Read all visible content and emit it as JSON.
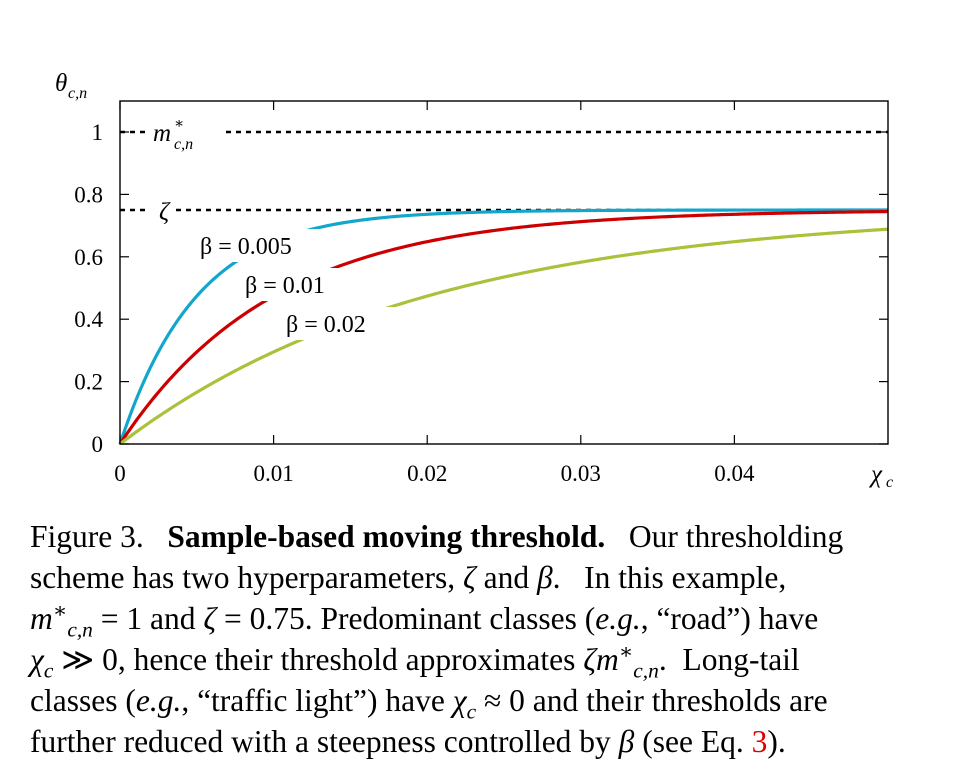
{
  "chart_data": {
    "type": "line",
    "xlabel": "χc",
    "ylabel": "θc,n",
    "xlim": [
      0,
      0.05
    ],
    "ylim": [
      0,
      1.05
    ],
    "xticks": [
      0,
      0.01,
      0.02,
      0.03,
      0.04
    ],
    "xtick_labels": [
      "0",
      "0.01",
      "0.02",
      "0.03",
      "0.04"
    ],
    "yticks": [
      0,
      0.2,
      0.4,
      0.6,
      0.8,
      1
    ],
    "ytick_labels": [
      "0",
      "0.2",
      "0.4",
      "0.6",
      "0.8",
      "1"
    ],
    "colors": {
      "beta_0005": "#13a6cd",
      "beta_001": "#cc0000",
      "beta_002": "#a8c23a",
      "reference": "#000000"
    },
    "reference_lines": [
      {
        "label": "m*c,n",
        "y": 1
      },
      {
        "label": "ζ",
        "y": 0.75
      }
    ],
    "series": [
      {
        "name": "β = 0.005",
        "beta": 0.005,
        "x": [
          0,
          0.005,
          0.01,
          0.015,
          0.02,
          0.025,
          0.03,
          0.035,
          0.04,
          0.045,
          0.05
        ],
        "y": [
          0,
          0.474,
          0.649,
          0.713,
          0.737,
          0.745,
          0.748,
          0.749,
          0.75,
          0.75,
          0.75
        ]
      },
      {
        "name": "β = 0.01",
        "beta": 0.01,
        "x": [
          0,
          0.005,
          0.01,
          0.015,
          0.02,
          0.025,
          0.03,
          0.035,
          0.04,
          0.045,
          0.05
        ],
        "y": [
          0,
          0.295,
          0.474,
          0.583,
          0.649,
          0.688,
          0.713,
          0.727,
          0.737,
          0.742,
          0.745
        ]
      },
      {
        "name": "β = 0.02",
        "beta": 0.02,
        "x": [
          0,
          0.005,
          0.01,
          0.015,
          0.02,
          0.025,
          0.03,
          0.035,
          0.04,
          0.045,
          0.05
        ],
        "y": [
          0,
          0.166,
          0.295,
          0.396,
          0.474,
          0.535,
          0.583,
          0.62,
          0.649,
          0.672,
          0.689
        ]
      }
    ],
    "annotations": [
      "β = 0.005",
      "β = 0.01",
      "β = 0.02"
    ]
  },
  "caption": {
    "figure_label": "Figure 3.",
    "title": "Sample-based moving threshold.",
    "l1_rest": "Our thresholding",
    "l2": "scheme has two hyperparameters,",
    "l2_sym1": "ζ",
    "l2_and": "and",
    "l2_sym2": "β",
    "l2_rest": ".   In this example,",
    "l3_m": "m",
    "l3_sub": "c,n",
    "l3_eq1": " = 1 ",
    "l3_and": "and",
    "l3_zeta": "ζ",
    "l3_eq2": " = 0.75",
    "l3_rest": ". Predominant classes (",
    "l3_eg": "e.g.",
    "l3_road": ", “road”) have",
    "l4_chi": "χ",
    "l4_sub": "c",
    "l4_gg": " ≫ 0",
    "l4_rest": ", hence their threshold approximates ",
    "l4_zeta": "ζm",
    "l4_sub2": "c,n",
    "l4_tail": ".  Long-tail",
    "l5_a": "classes (",
    "l5_eg": "e.g.",
    "l5_b": ", “traffic light”) have ",
    "l5_chi": "χ",
    "l5_sub": "c",
    "l5_c": " ≈ 0",
    "l5_d": " and their thresholds are",
    "l6_a": "further reduced with a steepness controlled by ",
    "l6_beta": "β",
    "l6_b": " (see Eq. ",
    "l6_ref": "3",
    "l6_c": ")."
  }
}
